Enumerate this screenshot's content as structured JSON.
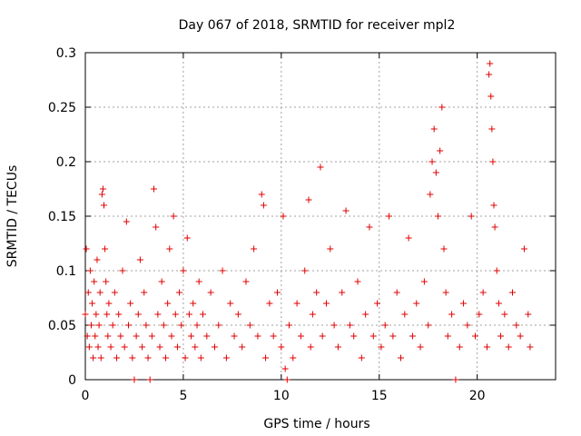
{
  "chart_data": {
    "type": "scatter",
    "title": "Day 067 of 2018, SRMTID for receiver mpl2",
    "xlabel": "GPS time / hours",
    "ylabel": "SRMTID / TECUs",
    "xlim": [
      0,
      24
    ],
    "ylim": [
      0,
      0.3
    ],
    "x_ticks": [
      0,
      5,
      10,
      15,
      20
    ],
    "x_tick_labels": [
      "0",
      "5",
      "10",
      "15",
      "20"
    ],
    "y_ticks": [
      0,
      0.05,
      0.1,
      0.15,
      0.2,
      0.25,
      0.3
    ],
    "y_tick_labels": [
      "0",
      "0.05",
      "0.1",
      "0.15",
      "0.2",
      "0.25",
      "0.3"
    ],
    "grid": true,
    "series": [
      {
        "name": "SRMTID",
        "color": "#e00000",
        "marker": "plus",
        "points": [
          [
            0.0,
            0.06
          ],
          [
            0.05,
            0.12
          ],
          [
            0.1,
            0.04
          ],
          [
            0.15,
            0.08
          ],
          [
            0.2,
            0.03
          ],
          [
            0.25,
            0.1
          ],
          [
            0.3,
            0.05
          ],
          [
            0.35,
            0.07
          ],
          [
            0.4,
            0.02
          ],
          [
            0.45,
            0.09
          ],
          [
            0.5,
            0.04
          ],
          [
            0.55,
            0.06
          ],
          [
            0.6,
            0.11
          ],
          [
            0.65,
            0.03
          ],
          [
            0.7,
            0.05
          ],
          [
            0.75,
            0.08
          ],
          [
            0.8,
            0.02
          ],
          [
            0.85,
            0.17
          ],
          [
            0.9,
            0.175
          ],
          [
            0.95,
            0.16
          ],
          [
            1.0,
            0.12
          ],
          [
            1.05,
            0.09
          ],
          [
            1.1,
            0.06
          ],
          [
            1.15,
            0.04
          ],
          [
            1.2,
            0.07
          ],
          [
            1.3,
            0.03
          ],
          [
            1.4,
            0.05
          ],
          [
            1.5,
            0.08
          ],
          [
            1.6,
            0.02
          ],
          [
            1.7,
            0.06
          ],
          [
            1.8,
            0.04
          ],
          [
            1.9,
            0.1
          ],
          [
            2.0,
            0.03
          ],
          [
            2.1,
            0.145
          ],
          [
            2.2,
            0.05
          ],
          [
            2.3,
            0.07
          ],
          [
            2.4,
            0.02
          ],
          [
            2.5,
            0.0
          ],
          [
            2.6,
            0.04
          ],
          [
            2.7,
            0.06
          ],
          [
            2.8,
            0.11
          ],
          [
            2.9,
            0.03
          ],
          [
            3.0,
            0.08
          ],
          [
            3.1,
            0.05
          ],
          [
            3.2,
            0.02
          ],
          [
            3.3,
            0.0
          ],
          [
            3.4,
            0.04
          ],
          [
            3.5,
            0.175
          ],
          [
            3.6,
            0.14
          ],
          [
            3.7,
            0.06
          ],
          [
            3.8,
            0.03
          ],
          [
            3.9,
            0.09
          ],
          [
            4.0,
            0.05
          ],
          [
            4.1,
            0.02
          ],
          [
            4.2,
            0.07
          ],
          [
            4.3,
            0.12
          ],
          [
            4.4,
            0.04
          ],
          [
            4.5,
            0.15
          ],
          [
            4.6,
            0.06
          ],
          [
            4.7,
            0.03
          ],
          [
            4.8,
            0.08
          ],
          [
            4.9,
            0.05
          ],
          [
            5.0,
            0.1
          ],
          [
            5.1,
            0.02
          ],
          [
            5.2,
            0.13
          ],
          [
            5.3,
            0.06
          ],
          [
            5.4,
            0.04
          ],
          [
            5.5,
            0.07
          ],
          [
            5.6,
            0.03
          ],
          [
            5.7,
            0.05
          ],
          [
            5.8,
            0.09
          ],
          [
            5.9,
            0.02
          ],
          [
            6.0,
            0.06
          ],
          [
            6.2,
            0.04
          ],
          [
            6.4,
            0.08
          ],
          [
            6.6,
            0.03
          ],
          [
            6.8,
            0.05
          ],
          [
            7.0,
            0.1
          ],
          [
            7.2,
            0.02
          ],
          [
            7.4,
            0.07
          ],
          [
            7.6,
            0.04
          ],
          [
            7.8,
            0.06
          ],
          [
            8.0,
            0.03
          ],
          [
            8.2,
            0.09
          ],
          [
            8.4,
            0.05
          ],
          [
            8.6,
            0.12
          ],
          [
            8.8,
            0.04
          ],
          [
            9.0,
            0.17
          ],
          [
            9.1,
            0.16
          ],
          [
            9.2,
            0.02
          ],
          [
            9.4,
            0.07
          ],
          [
            9.6,
            0.04
          ],
          [
            9.8,
            0.08
          ],
          [
            10.0,
            0.03
          ],
          [
            10.1,
            0.15
          ],
          [
            10.2,
            0.01
          ],
          [
            10.3,
            0.0
          ],
          [
            10.4,
            0.05
          ],
          [
            10.6,
            0.02
          ],
          [
            10.8,
            0.07
          ],
          [
            11.0,
            0.04
          ],
          [
            11.2,
            0.1
          ],
          [
            11.4,
            0.165
          ],
          [
            11.5,
            0.03
          ],
          [
            11.6,
            0.06
          ],
          [
            11.8,
            0.08
          ],
          [
            12.0,
            0.195
          ],
          [
            12.1,
            0.04
          ],
          [
            12.3,
            0.07
          ],
          [
            12.5,
            0.12
          ],
          [
            12.7,
            0.05
          ],
          [
            12.9,
            0.03
          ],
          [
            13.1,
            0.08
          ],
          [
            13.3,
            0.155
          ],
          [
            13.5,
            0.05
          ],
          [
            13.7,
            0.04
          ],
          [
            13.9,
            0.09
          ],
          [
            14.1,
            0.02
          ],
          [
            14.3,
            0.06
          ],
          [
            14.5,
            0.14
          ],
          [
            14.7,
            0.04
          ],
          [
            14.9,
            0.07
          ],
          [
            15.1,
            0.03
          ],
          [
            15.3,
            0.05
          ],
          [
            15.5,
            0.15
          ],
          [
            15.7,
            0.04
          ],
          [
            15.9,
            0.08
          ],
          [
            16.1,
            0.02
          ],
          [
            16.3,
            0.06
          ],
          [
            16.5,
            0.13
          ],
          [
            16.7,
            0.04
          ],
          [
            16.9,
            0.07
          ],
          [
            17.1,
            0.03
          ],
          [
            17.3,
            0.09
          ],
          [
            17.5,
            0.05
          ],
          [
            17.6,
            0.17
          ],
          [
            17.7,
            0.2
          ],
          [
            17.8,
            0.23
          ],
          [
            17.9,
            0.19
          ],
          [
            18.0,
            0.15
          ],
          [
            18.1,
            0.21
          ],
          [
            18.2,
            0.25
          ],
          [
            18.3,
            0.12
          ],
          [
            18.4,
            0.08
          ],
          [
            18.5,
            0.04
          ],
          [
            18.7,
            0.06
          ],
          [
            18.9,
            0.0
          ],
          [
            19.1,
            0.03
          ],
          [
            19.3,
            0.07
          ],
          [
            19.5,
            0.05
          ],
          [
            19.7,
            0.15
          ],
          [
            19.9,
            0.04
          ],
          [
            20.1,
            0.06
          ],
          [
            20.3,
            0.08
          ],
          [
            20.5,
            0.03
          ],
          [
            20.6,
            0.28
          ],
          [
            20.65,
            0.29
          ],
          [
            20.7,
            0.26
          ],
          [
            20.75,
            0.23
          ],
          [
            20.8,
            0.2
          ],
          [
            20.85,
            0.16
          ],
          [
            20.9,
            0.14
          ],
          [
            21.0,
            0.1
          ],
          [
            21.1,
            0.07
          ],
          [
            21.2,
            0.04
          ],
          [
            21.4,
            0.06
          ],
          [
            21.6,
            0.03
          ],
          [
            21.8,
            0.08
          ],
          [
            22.0,
            0.05
          ],
          [
            22.2,
            0.04
          ],
          [
            22.4,
            0.12
          ],
          [
            22.6,
            0.06
          ],
          [
            22.7,
            0.03
          ]
        ]
      }
    ]
  }
}
